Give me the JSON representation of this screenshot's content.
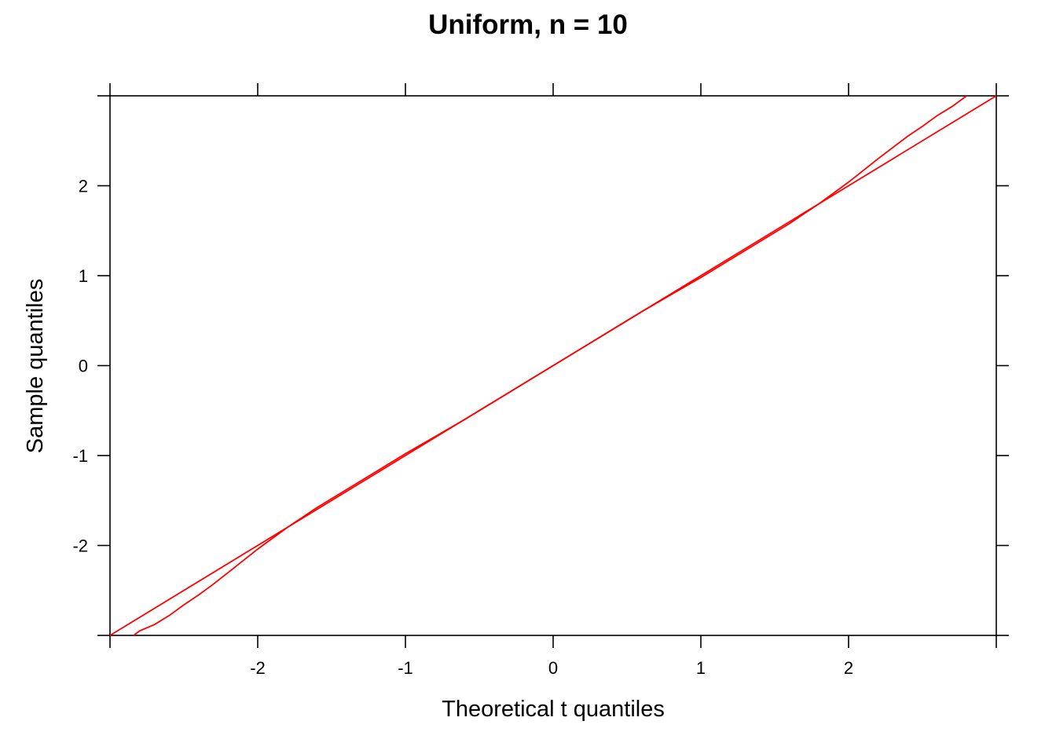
{
  "chart_data": {
    "type": "line",
    "title": "Uniform, n = 10",
    "xlabel": "Theoretical t quantiles",
    "ylabel": "Sample quantiles",
    "xlim": [
      -3,
      3
    ],
    "ylim": [
      -3,
      3
    ],
    "x_ticks": [
      -2,
      -1,
      0,
      1,
      2
    ],
    "y_ticks": [
      -2,
      -1,
      0,
      1,
      2
    ],
    "x_tick_labels": [
      "-2",
      "-1",
      "0",
      "1",
      "2"
    ],
    "y_tick_labels": [
      "-2",
      "-1",
      "0",
      "1",
      "2"
    ],
    "grid": false,
    "line_color": "#ff0000",
    "series": [
      {
        "values_x": [
          -2.84,
          -2.8,
          -2.7,
          -2.6,
          -2.5,
          -2.4,
          -2.3,
          -2.2,
          -2.0,
          -1.8,
          -1.6,
          -1.4,
          -1.2,
          -1.0,
          -0.8,
          -0.6,
          -0.4,
          -0.2,
          0.0,
          0.2,
          0.4,
          0.6,
          0.8,
          1.0,
          1.2,
          1.4,
          1.6,
          1.8,
          2.0,
          2.2,
          2.4,
          2.5,
          2.6,
          2.7,
          2.8
        ],
        "values_y": [
          -3.0,
          -2.95,
          -2.88,
          -2.78,
          -2.66,
          -2.55,
          -2.43,
          -2.3,
          -2.04,
          -1.8,
          -1.58,
          -1.38,
          -1.18,
          -0.98,
          -0.79,
          -0.6,
          -0.4,
          -0.2,
          0.0,
          0.2,
          0.4,
          0.6,
          0.79,
          0.98,
          1.18,
          1.38,
          1.58,
          1.8,
          2.04,
          2.3,
          2.55,
          2.66,
          2.78,
          2.88,
          3.0
        ]
      },
      {
        "values_x": [
          -3,
          3
        ],
        "values_y": [
          -3,
          3
        ]
      }
    ]
  }
}
